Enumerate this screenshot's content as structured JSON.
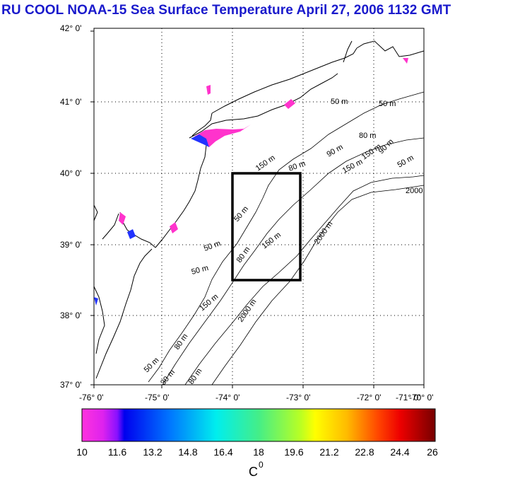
{
  "title": "RU COOL  NOAA-15 Sea Surface Temperature April 27, 2006 1132 GMT",
  "lat_ticks": [
    "42° 0'",
    "41° 0'",
    "40° 0'",
    "39° 0'",
    "38° 0'",
    "37° 0'"
  ],
  "lon_ticks": [
    "-76° 0'",
    "-75° 0'",
    "-74° 0'",
    "-73° 0'",
    "-72° 0'",
    "-71° 0'",
    "-70° 0'"
  ],
  "contour_labels": [
    "50 m",
    "50 m",
    "80 m",
    "90 m",
    "150 m",
    "50 m",
    "2000",
    "150 m",
    "50 m",
    "80 m",
    "150 m",
    "50 m",
    "2000 m",
    "50 m",
    "80 m",
    "150 m",
    "80 m",
    "150 m",
    "2000 m",
    "80 m",
    "50 m",
    "30 m",
    "90 m"
  ],
  "colorbar": {
    "ticks": [
      "10",
      "11.6",
      "13.2",
      "14.8",
      "16.4",
      "18",
      "19.6",
      "21.2",
      "22.8",
      "24.4",
      "26"
    ],
    "unit": "C",
    "unit_sup": "0",
    "min": 10,
    "max": 26
  },
  "colors": {
    "title": "#1a1acc",
    "land_patch_magenta": "#ff33cc",
    "land_patch_blue": "#2233ff",
    "box": "#000000"
  }
}
